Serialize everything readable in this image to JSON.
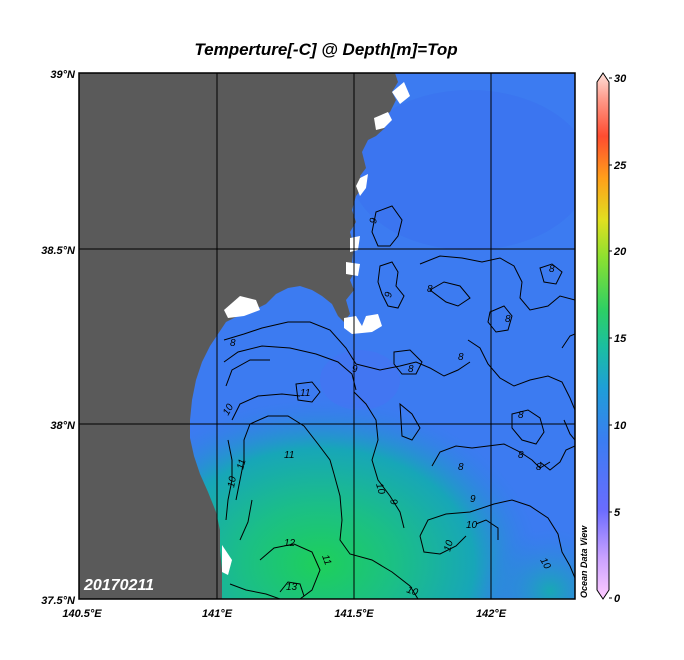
{
  "title": "Temperture[-C] @ Depth[m]=Top",
  "date_stamp": "20170211",
  "watermark": "Ocean Data View",
  "map": {
    "lon_ticks": [
      "140.5°E",
      "141°E",
      "141.5°E",
      "142°E"
    ],
    "lat_ticks": [
      "39°N",
      "38.5°N",
      "38°N",
      "37.5°N"
    ],
    "lon_range": [
      140.5,
      142.3
    ],
    "lat_range": [
      37.5,
      39.0
    ],
    "land_color": "#5a5a5a",
    "grid": true
  },
  "colorbar": {
    "ticks": [
      "30",
      "25",
      "20",
      "15",
      "10",
      "5",
      "0"
    ],
    "range": [
      0,
      30
    ],
    "colors": [
      "#ffccff",
      "#b899ff",
      "#5566ff",
      "#3f8cf0",
      "#1bb0c8",
      "#2fcf6f",
      "#8fe030",
      "#e6e01e",
      "#ff9a1a",
      "#ff5030",
      "#ff9a8a",
      "#ffd8d0"
    ]
  },
  "contour_labels": [
    "9",
    "9",
    "8",
    "8",
    "8",
    "8",
    "8",
    "11",
    "10",
    "11",
    "10",
    "11",
    "12",
    "13",
    "11",
    "10",
    "9",
    "10",
    "9",
    "10",
    "10",
    "8",
    "8",
    "8",
    "9",
    "10",
    "8",
    "8"
  ]
}
